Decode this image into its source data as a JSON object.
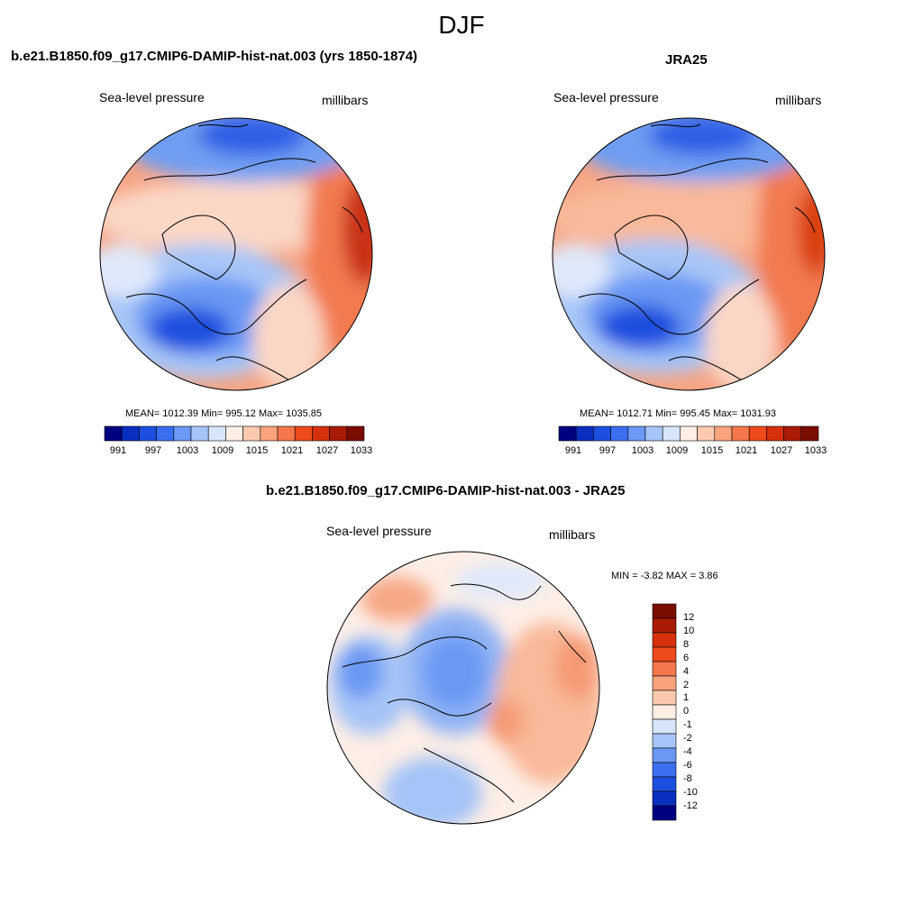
{
  "figure": {
    "title": "DJF"
  },
  "panels": [
    {
      "id": "model",
      "title": "b.e21.B1850.f09_g17.CMIP6-DAMIP-hist-nat.003 (yrs 1850-1874)",
      "left_label": "Sea-level pressure",
      "right_label": "millibars",
      "stats": "MEAN= 1012.39  Min= 995.12  Max= 1035.85",
      "colorbar_ticks": [
        "991",
        "997",
        "1003",
        "1009",
        "1015",
        "1021",
        "1027",
        "1033"
      ]
    },
    {
      "id": "obs",
      "title": "JRA25",
      "left_label": "Sea-level pressure",
      "right_label": "millibars",
      "stats": "MEAN= 1012.71  Min= 995.45  Max= 1031.93",
      "colorbar_ticks": [
        "991",
        "997",
        "1003",
        "1009",
        "1015",
        "1021",
        "1027",
        "1033"
      ]
    },
    {
      "id": "diff",
      "title": "b.e21.B1850.f09_g17.CMIP6-DAMIP-hist-nat.003 - JRA25",
      "left_label": "Sea-level pressure",
      "right_label": "millibars",
      "stats": "MIN =  -3.82 MAX =   3.86",
      "colorbar_ticks": [
        "12",
        "10",
        "8",
        "6",
        "4",
        "2",
        "1",
        "0",
        "-1",
        "-2",
        "-4",
        "-6",
        "-8",
        "-10",
        "-12"
      ]
    }
  ],
  "colors": {
    "abs_scale": [
      "#000080",
      "#0a2fbf",
      "#1c4fe0",
      "#3a6ff0",
      "#6a98f4",
      "#a6c4f7",
      "#d8e6fb",
      "#fdeee6",
      "#fbc9b0",
      "#f9a27e",
      "#f5774c",
      "#ee4a1c",
      "#d6300d",
      "#a91b05",
      "#7a0d00"
    ],
    "diff_scale": [
      "#7a0d00",
      "#a91b05",
      "#d6300d",
      "#ee4a1c",
      "#f5774c",
      "#f9a27e",
      "#fbc9b0",
      "#fdeee6",
      "#d8e6fb",
      "#a6c4f7",
      "#6a98f4",
      "#3a6ff0",
      "#1c4fe0",
      "#0a2fbf",
      "#000080"
    ]
  }
}
